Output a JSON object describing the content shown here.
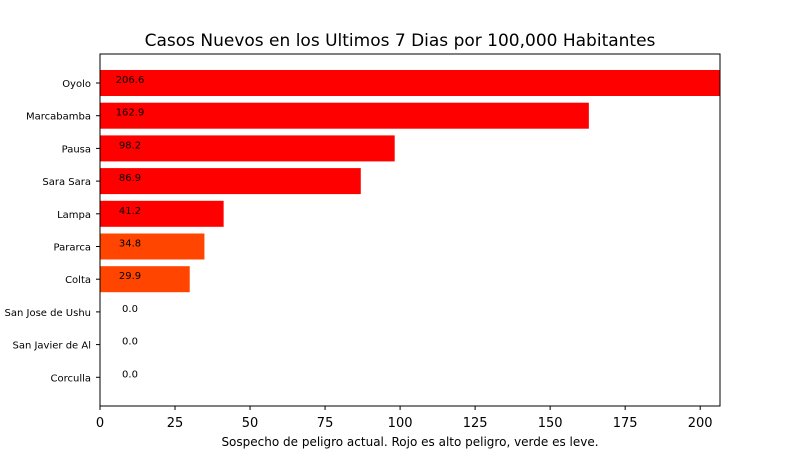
{
  "chart_data": {
    "type": "bar",
    "orientation": "horizontal",
    "title": "Casos Nuevos en los Ultimos 7 Dias por 100,000 Habitantes",
    "xlabel": "Sospecho de peligro actual. Rojo es alto peligro, verde es leve.",
    "ylabel": "",
    "xlim": [
      0,
      206.6
    ],
    "xticks": [
      0,
      25,
      50,
      75,
      100,
      125,
      150,
      175,
      200
    ],
    "categories": [
      "Oyolo",
      "Marcabamba",
      "Pausa",
      "Sara Sara",
      "Lampa",
      "Pararca",
      "Colta",
      "San Jose de Ushu",
      "San Javier de Al",
      "Corculla"
    ],
    "values": [
      206.6,
      162.9,
      98.2,
      86.9,
      41.2,
      34.8,
      29.9,
      0.0,
      0.0,
      0.0
    ],
    "value_labels": [
      "206.6",
      "162.9",
      "98.2",
      "86.9",
      "41.2",
      "34.8",
      "29.9",
      "0.0",
      "0.0",
      "0.0"
    ],
    "colors": [
      "#ff0000",
      "#ff0000",
      "#ff0000",
      "#ff0000",
      "#ff0000",
      "#ff4500",
      "#ff4500",
      "#ff4500",
      "#ff4500",
      "#ff4500"
    ],
    "grid": false
  }
}
